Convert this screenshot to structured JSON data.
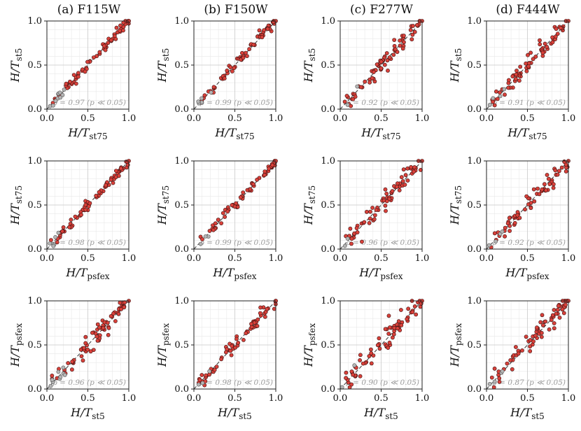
{
  "chart_data": {
    "type": "scatter",
    "description_style": "3x4 grid of scatter plots comparing normalized H/T ratios across methods and filters",
    "colors": {
      "point_fill": "#d9413a",
      "point_stroke": "#3a1010",
      "gray_fill": "#b5b5b5",
      "gray_stroke": "#555555",
      "diag": "#444444"
    },
    "columns": [
      {
        "label": "(a) F115W"
      },
      {
        "label": "(b) F150W"
      },
      {
        "label": "(c) F277W"
      },
      {
        "label": "(d) F444W"
      }
    ],
    "xlim": [
      0,
      1
    ],
    "ylim": [
      0,
      1
    ],
    "ticks": [
      "0.0",
      "0.5",
      "1.0"
    ],
    "tick_values": [
      0,
      0.5,
      1
    ],
    "rows": [
      {
        "xlabel_main": "H/T",
        "xlabel_sub": "st75",
        "ylabel_main": "H/T",
        "ylabel_sub": "st5"
      },
      {
        "xlabel_main": "H/T",
        "xlabel_sub": "psfex",
        "ylabel_main": "H/T",
        "ylabel_sub": "st75"
      },
      {
        "xlabel_main": "H/T",
        "xlabel_sub": "st5",
        "ylabel_main": "H/T",
        "ylabel_sub": "psfex"
      }
    ],
    "panels": [
      {
        "row": 0,
        "col": 0,
        "stat": "ρ = 0.97 (p ≪ 0.05)",
        "scatter": 0.03,
        "n": 70,
        "gray": 10,
        "seed": 11
      },
      {
        "row": 0,
        "col": 1,
        "stat": "ρ = 0.99 (p ≪ 0.05)",
        "scatter": 0.025,
        "n": 65,
        "gray": 5,
        "seed": 12
      },
      {
        "row": 0,
        "col": 2,
        "stat": "ρ = 0.92 (p ≪ 0.05)",
        "scatter": 0.05,
        "n": 70,
        "gray": 2,
        "seed": 13
      },
      {
        "row": 0,
        "col": 3,
        "stat": "ρ = 0.91 (p ≪ 0.05)",
        "scatter": 0.05,
        "n": 70,
        "gray": 4,
        "seed": 14
      },
      {
        "row": 1,
        "col": 0,
        "stat": "ρ = 0.98 (p ≪ 0.05)",
        "scatter": 0.03,
        "n": 70,
        "gray": 6,
        "seed": 21
      },
      {
        "row": 1,
        "col": 1,
        "stat": "ρ = 0.99 (p ≪ 0.05)",
        "scatter": 0.025,
        "n": 65,
        "gray": 3,
        "seed": 22
      },
      {
        "row": 1,
        "col": 2,
        "stat": "ρ = 0.96 (p ≪ 0.05)",
        "scatter": 0.06,
        "n": 70,
        "gray": 2,
        "seed": 23
      },
      {
        "row": 1,
        "col": 3,
        "stat": "ρ = 0.92 (p ≪ 0.05)",
        "scatter": 0.05,
        "n": 65,
        "gray": 4,
        "seed": 24
      },
      {
        "row": 2,
        "col": 0,
        "stat": "ρ = 0.96 (p ≪ 0.05)",
        "scatter": 0.05,
        "n": 70,
        "gray": 10,
        "seed": 31
      },
      {
        "row": 2,
        "col": 1,
        "stat": "ρ = 0.98 (p ≪ 0.05)",
        "scatter": 0.04,
        "n": 65,
        "gray": 3,
        "seed": 32
      },
      {
        "row": 2,
        "col": 2,
        "stat": "ρ = 0.90 (p ≪ 0.05)",
        "scatter": 0.08,
        "n": 70,
        "gray": 2,
        "seed": 33
      },
      {
        "row": 2,
        "col": 3,
        "stat": "ρ = 0.87 (p ≪ 0.05)",
        "scatter": 0.07,
        "n": 70,
        "gray": 4,
        "seed": 34
      }
    ]
  }
}
